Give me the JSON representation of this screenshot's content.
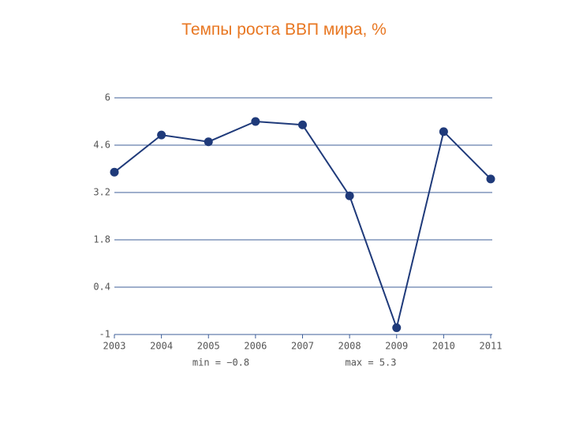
{
  "chart_data": {
    "type": "line",
    "title": "Темпы роста ВВП мира, %",
    "categories": [
      "2003",
      "2004",
      "2005",
      "2006",
      "2007",
      "2008",
      "2009",
      "2010",
      "2011"
    ],
    "values": [
      3.8,
      4.9,
      4.7,
      5.3,
      5.2,
      3.1,
      -0.8,
      5.0,
      3.6
    ],
    "color": "#1f3a7a",
    "ylim": [
      -1,
      6
    ],
    "yticks": [
      -1,
      0.4,
      1.8,
      3.2,
      4.6,
      6
    ],
    "grid": true,
    "annotations": [
      "min = −0.8",
      "max = 5.3"
    ]
  }
}
